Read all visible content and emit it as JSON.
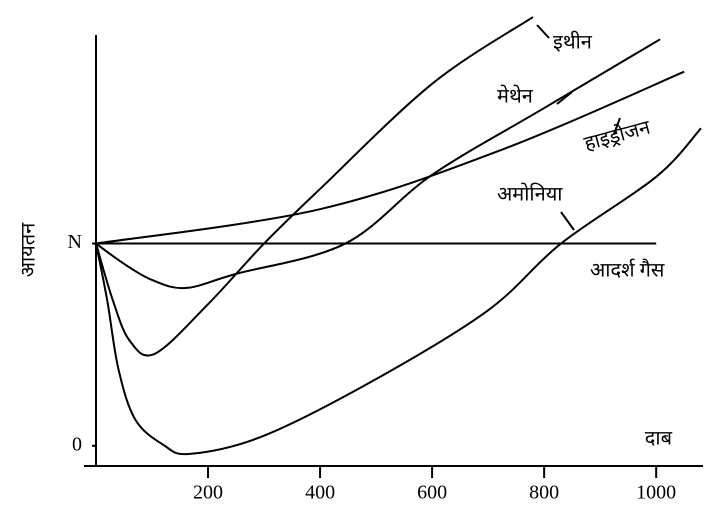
{
  "chart_data": {
    "type": "line",
    "y_label": "आयतन",
    "x_label": "दाब",
    "xlim": [
      0,
      1080
    ],
    "ylim": [
      -0.1,
      2.15
    ],
    "xticks": [
      200,
      400,
      600,
      800,
      1000
    ],
    "yticks": [
      0,
      {
        "value": 1,
        "label": "N"
      }
    ],
    "series": [
      {
        "name": "इथीन",
        "color": "#000000",
        "x": [
          0,
          30,
          60,
          105,
          200,
          300,
          400,
          600,
          780
        ],
        "values": [
          1,
          0.72,
          0.52,
          0.455,
          0.7,
          1.0,
          1.27,
          1.79,
          2.12
        ]
      },
      {
        "name": "मेथेन",
        "color": "#000000",
        "x": [
          0,
          50,
          100,
          160,
          250,
          445,
          600,
          800,
          1007
        ],
        "values": [
          1,
          0.9,
          0.82,
          0.78,
          0.85,
          1.0,
          1.34,
          1.67,
          2.01
        ]
      },
      {
        "name": "हाइड्रोजन",
        "color": "#000000",
        "x": [
          0,
          400,
          730,
          1050
        ],
        "values": [
          1,
          1.17,
          1.47,
          1.85
        ]
      },
      {
        "name": "अमोनिया",
        "color": "#000000",
        "x": [
          0,
          20,
          40,
          70,
          120,
          168,
          300,
          500,
          700,
          830,
          1000,
          1080
        ],
        "values": [
          1,
          0.72,
          0.38,
          0.13,
          0.005,
          -0.04,
          0.05,
          0.33,
          0.67,
          1.0,
          1.33,
          1.57
        ]
      },
      {
        "name": "आदर्श गैस",
        "color": "#000000",
        "x": [
          0,
          1000
        ],
        "values": [
          1,
          1
        ]
      }
    ]
  }
}
